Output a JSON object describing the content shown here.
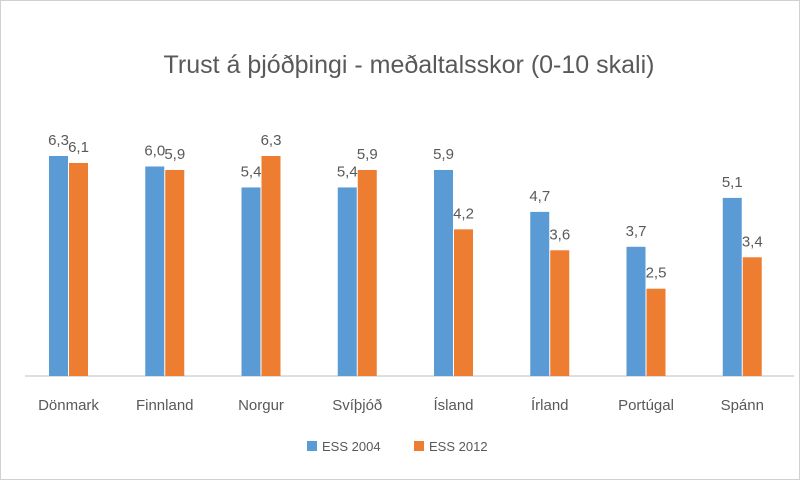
{
  "chart_data": {
    "type": "bar",
    "title": "Trust á þjóðþingi - meðaltalsskor (0-10 skali)",
    "categories": [
      "Dönmark",
      "Finnland",
      "Norgur",
      "Svíþjóð",
      "Ísland",
      "Írland",
      "Portúgal",
      "Spánn"
    ],
    "series": [
      {
        "name": "ESS 2004",
        "color": "#5B9BD5",
        "values": [
          6.3,
          6.0,
          5.4,
          5.4,
          5.9,
          4.7,
          3.7,
          5.1
        ],
        "labels": [
          "6,3",
          "6,0",
          "5,4",
          "5,4",
          "5,9",
          "4,7",
          "3,7",
          "5,1"
        ]
      },
      {
        "name": "ESS 2012",
        "color": "#ED7D31",
        "values": [
          6.1,
          5.9,
          6.3,
          5.9,
          4.2,
          3.6,
          2.5,
          3.4
        ],
        "labels": [
          "6,1",
          "5,9",
          "6,3",
          "5,9",
          "4,2",
          "3,6",
          "2,5",
          "3,4"
        ]
      }
    ],
    "xlabel": "",
    "ylabel": "",
    "ylim": [
      0,
      6.3
    ],
    "grid": false,
    "legend": "bottom-center",
    "axis_color": "#bfbfbf",
    "text_color": "#595959"
  }
}
